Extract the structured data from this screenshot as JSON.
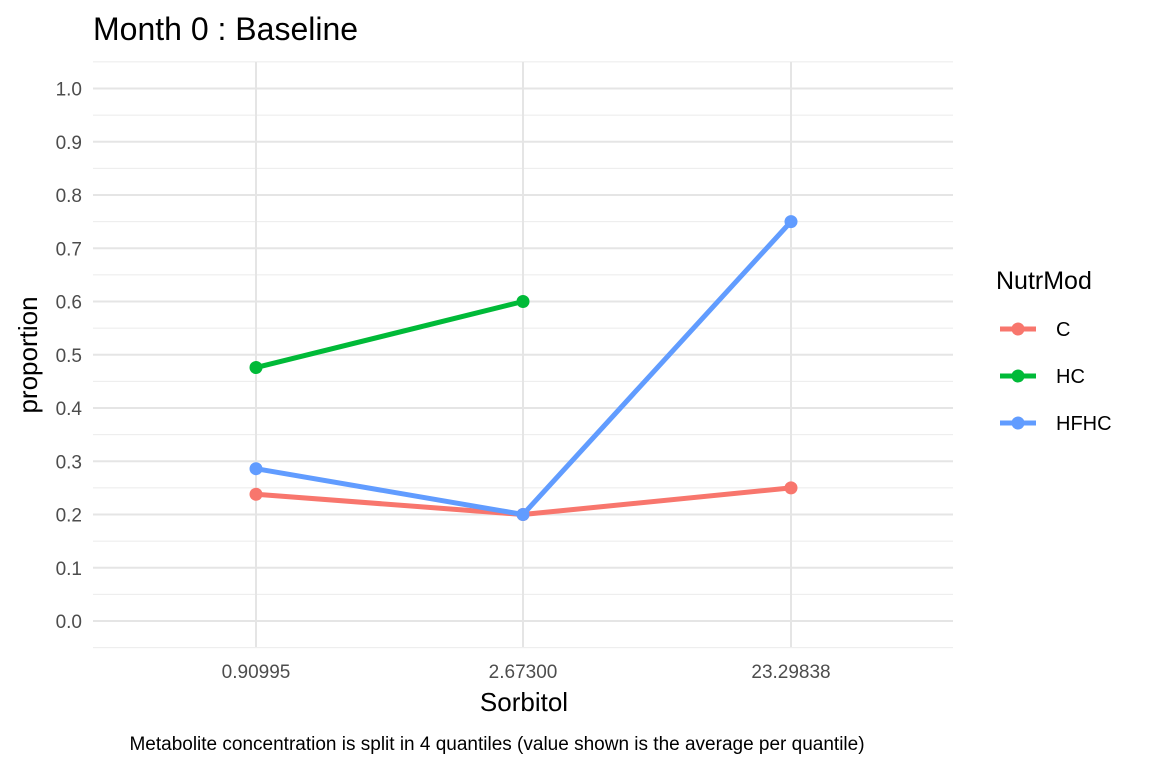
{
  "chart_data": {
    "type": "line",
    "title": "Month 0 : Baseline",
    "xlabel": "Sorbitol",
    "ylabel": "proportion",
    "caption": "Metabolite concentration is split in 4 quantiles (value shown is the average per quantile)",
    "categories": [
      "0.90995",
      "2.67300",
      "23.29838"
    ],
    "ylim": [
      0,
      1.0
    ],
    "yticks": [
      "0.0",
      "0.1",
      "0.2",
      "0.3",
      "0.4",
      "0.5",
      "0.6",
      "0.7",
      "0.8",
      "0.9",
      "1.0"
    ],
    "grid": true,
    "legend": {
      "title": "NutrMod",
      "position": "right"
    },
    "series": [
      {
        "name": "C",
        "color": "#F8766D",
        "values": [
          0.238,
          0.2,
          0.25
        ]
      },
      {
        "name": "HC",
        "color": "#00BA38",
        "values": [
          0.476,
          0.6,
          null
        ]
      },
      {
        "name": "HFHC",
        "color": "#619CFF",
        "values": [
          0.286,
          0.2,
          0.75
        ]
      }
    ]
  }
}
